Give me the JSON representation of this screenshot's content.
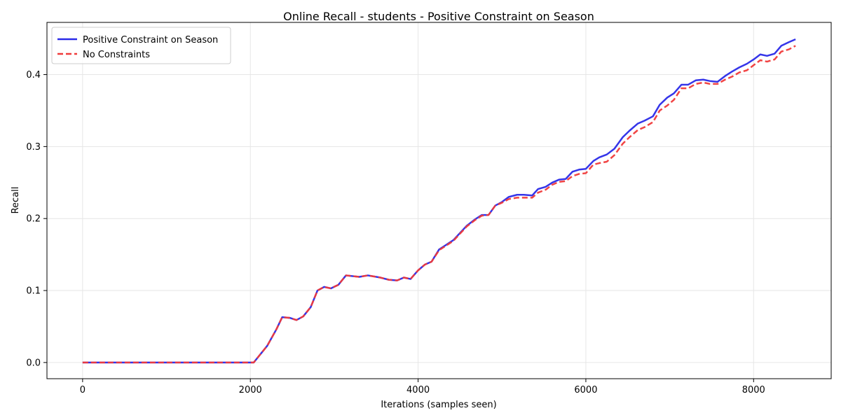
{
  "chart_data": {
    "type": "line",
    "title": "Online Recall - students - Positive Constraint on Season",
    "xlabel": "Iterations (samples seen)",
    "ylabel": "Recall",
    "xlim": [
      -425,
      8925
    ],
    "ylim": [
      -0.0225,
      0.4725
    ],
    "xticks": [
      0,
      2000,
      4000,
      6000,
      8000
    ],
    "yticks": [
      0.0,
      0.1,
      0.2,
      0.3,
      0.4
    ],
    "xtick_labels": [
      "0",
      "2000",
      "4000",
      "6000",
      "8000"
    ],
    "ytick_labels": [
      "0.0",
      "0.1",
      "0.2",
      "0.3",
      "0.4"
    ],
    "grid": true,
    "legend_position": "top-left",
    "colors": {
      "positive": "#2a2ae8",
      "none": "#f03a3a"
    },
    "x": [
      0,
      2040,
      2200,
      2310,
      2380,
      2470,
      2550,
      2630,
      2720,
      2800,
      2880,
      2960,
      3050,
      3140,
      3300,
      3400,
      3550,
      3650,
      3750,
      3830,
      3910,
      4000,
      4080,
      4160,
      4250,
      4420,
      4580,
      4680,
      4760,
      4840,
      4920,
      5000,
      5080,
      5180,
      5260,
      5360,
      5430,
      5520,
      5600,
      5680,
      5760,
      5840,
      5920,
      6000,
      6090,
      6160,
      6250,
      6340,
      6440,
      6520,
      6620,
      6700,
      6800,
      6880,
      6970,
      7050,
      7140,
      7220,
      7310,
      7400,
      7480,
      7570,
      7660,
      7740,
      7830,
      7920,
      8000,
      8080,
      8160,
      8250,
      8330,
      8420,
      8500
    ],
    "series": [
      {
        "name": "Positive Constraint on Season",
        "values": [
          0.0,
          0.0,
          0.023,
          0.046,
          0.063,
          0.062,
          0.059,
          0.064,
          0.077,
          0.1,
          0.105,
          0.103,
          0.108,
          0.121,
          0.119,
          0.121,
          0.118,
          0.115,
          0.114,
          0.118,
          0.116,
          0.128,
          0.136,
          0.14,
          0.157,
          0.17,
          0.19,
          0.199,
          0.205,
          0.205,
          0.218,
          0.223,
          0.23,
          0.233,
          0.233,
          0.232,
          0.241,
          0.244,
          0.25,
          0.254,
          0.255,
          0.265,
          0.268,
          0.269,
          0.28,
          0.285,
          0.289,
          0.297,
          0.313,
          0.322,
          0.332,
          0.336,
          0.342,
          0.358,
          0.368,
          0.374,
          0.386,
          0.386,
          0.392,
          0.393,
          0.391,
          0.39,
          0.398,
          0.404,
          0.41,
          0.415,
          0.421,
          0.428,
          0.426,
          0.429,
          0.44,
          0.445,
          0.449
        ]
      },
      {
        "name": "No Constraints",
        "values": [
          0.0,
          0.0,
          0.023,
          0.046,
          0.063,
          0.062,
          0.059,
          0.064,
          0.077,
          0.1,
          0.105,
          0.103,
          0.108,
          0.121,
          0.119,
          0.121,
          0.118,
          0.115,
          0.114,
          0.118,
          0.116,
          0.128,
          0.136,
          0.14,
          0.156,
          0.169,
          0.189,
          0.198,
          0.204,
          0.205,
          0.218,
          0.222,
          0.227,
          0.229,
          0.229,
          0.229,
          0.236,
          0.24,
          0.247,
          0.251,
          0.252,
          0.259,
          0.262,
          0.263,
          0.275,
          0.277,
          0.279,
          0.288,
          0.304,
          0.313,
          0.323,
          0.327,
          0.334,
          0.35,
          0.357,
          0.365,
          0.381,
          0.381,
          0.387,
          0.389,
          0.387,
          0.387,
          0.393,
          0.397,
          0.403,
          0.406,
          0.413,
          0.42,
          0.418,
          0.421,
          0.432,
          0.435,
          0.44
        ]
      }
    ]
  }
}
